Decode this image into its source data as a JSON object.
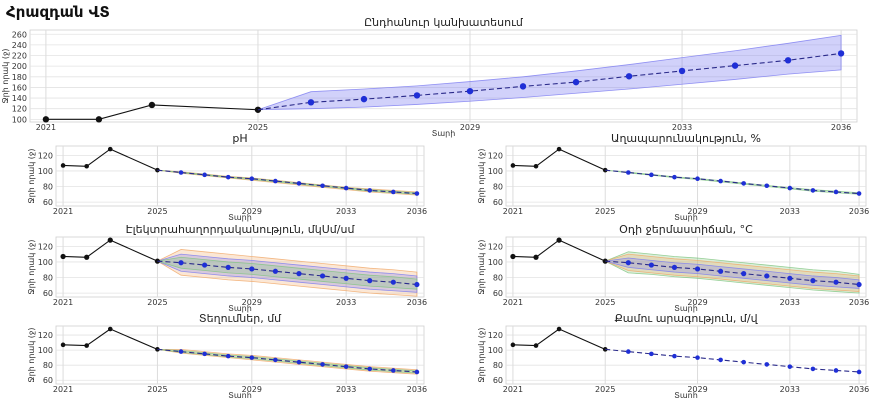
{
  "page": {
    "title": "Հրազդան ՎՏ"
  },
  "chart_data": [
    {
      "id": "main",
      "type": "line",
      "title": "Ընդհանուր կանխատեսում",
      "xlabel": "Տարի",
      "ylabel": "Ջրի որակ (ջ)",
      "xlim": [
        2020.7,
        2036.3
      ],
      "ylim": [
        95,
        268
      ],
      "yticks": [
        100,
        120,
        140,
        160,
        180,
        200,
        220,
        240,
        260
      ],
      "xticks": [
        2021,
        2025,
        2029,
        2033,
        2036
      ],
      "grid": true,
      "colors": {
        "history": "#111111",
        "forecast": "#2233cc",
        "band": "#7b7bf0"
      },
      "history": {
        "x": [
          2021,
          2022,
          2023,
          2025
        ],
        "y": [
          100,
          100,
          127,
          118
        ]
      },
      "forecast": {
        "x": [
          2025,
          2026,
          2027,
          2028,
          2029,
          2030,
          2031,
          2032,
          2033,
          2034,
          2035,
          2036
        ],
        "y": [
          118,
          132,
          138,
          145,
          153,
          162,
          170,
          181,
          191,
          201,
          211,
          224
        ]
      },
      "bands": [
        {
          "color": "#7b7bf0",
          "lower": [
            118,
            120,
            123,
            128,
            134,
            141,
            149,
            157,
            166,
            175,
            185,
            193
          ],
          "upper": [
            118,
            152,
            157,
            163,
            171,
            180,
            191,
            203,
            216,
            229,
            243,
            258
          ]
        }
      ]
    },
    {
      "id": "ph",
      "type": "line",
      "title": "pH",
      "xlabel": "Տարի",
      "ylabel": "Ջրի որակ (ջ)",
      "xlim": [
        2020.7,
        2036.3
      ],
      "ylim": [
        55,
        132
      ],
      "yticks": [
        60,
        80,
        100,
        120
      ],
      "xticks": [
        2021,
        2025,
        2029,
        2033,
        2036
      ],
      "grid": true,
      "history": {
        "x": [
          2021,
          2022,
          2023,
          2025
        ],
        "y": [
          107,
          106,
          128,
          101
        ]
      },
      "forecast": {
        "x": [
          2025,
          2026,
          2027,
          2028,
          2029,
          2030,
          2031,
          2032,
          2033,
          2034,
          2035,
          2036
        ],
        "y": [
          101,
          98,
          95,
          92,
          90,
          87,
          84,
          81,
          78,
          75,
          73,
          71
        ]
      },
      "bands": [
        {
          "color": "#f0a868",
          "lower": [
            101,
            97,
            94,
            91,
            88,
            85,
            82,
            79,
            76,
            73,
            71,
            69
          ],
          "upper": [
            101,
            99,
            96,
            93,
            91,
            88,
            85,
            82,
            79,
            77,
            75,
            73
          ]
        },
        {
          "color": "#7fc47f",
          "lower": [
            101,
            97.5,
            94.5,
            91.5,
            89,
            86,
            83,
            80,
            77,
            74,
            72,
            70
          ],
          "upper": [
            101,
            98.5,
            95.5,
            92.5,
            90.5,
            87.5,
            84.5,
            81.5,
            78.5,
            76,
            74,
            72
          ]
        }
      ]
    },
    {
      "id": "turbidity",
      "type": "line",
      "title": "Աղապարունակություն, %",
      "xlabel": "Տարի",
      "ylabel": "Ջրի որակ (ջ)",
      "xlim": [
        2020.7,
        2036.3
      ],
      "ylim": [
        55,
        132
      ],
      "yticks": [
        60,
        80,
        100,
        120
      ],
      "xticks": [
        2021,
        2025,
        2029,
        2033,
        2036
      ],
      "grid": true,
      "history": {
        "x": [
          2021,
          2022,
          2023,
          2025
        ],
        "y": [
          107,
          106,
          128,
          101
        ]
      },
      "forecast": {
        "x": [
          2025,
          2026,
          2027,
          2028,
          2029,
          2030,
          2031,
          2032,
          2033,
          2034,
          2035,
          2036
        ],
        "y": [
          101,
          98,
          95,
          92,
          90,
          87,
          84,
          81,
          78,
          75,
          73,
          71
        ]
      },
      "bands": [
        {
          "color": "#7fc47f",
          "lower": [
            101,
            97.5,
            94.5,
            91.5,
            89,
            86,
            83,
            80,
            77,
            74,
            72,
            70
          ],
          "upper": [
            101,
            98.5,
            95.5,
            92.5,
            90.5,
            87.5,
            84.5,
            81.5,
            78.5,
            76,
            74,
            72
          ]
        }
      ]
    },
    {
      "id": "conductivity",
      "type": "line",
      "title": "Էլեկտրահաղորդականություն, մկՍմ/սմ",
      "xlabel": "Տարի",
      "ylabel": "Ջրի որակ (ջ)",
      "xlim": [
        2020.7,
        2036.3
      ],
      "ylim": [
        55,
        132
      ],
      "yticks": [
        60,
        80,
        100,
        120
      ],
      "xticks": [
        2021,
        2025,
        2029,
        2033,
        2036
      ],
      "grid": true,
      "history": {
        "x": [
          2021,
          2022,
          2023,
          2025
        ],
        "y": [
          107,
          106,
          128,
          101
        ]
      },
      "forecast": {
        "x": [
          2025,
          2026,
          2027,
          2028,
          2029,
          2030,
          2031,
          2032,
          2033,
          2034,
          2035,
          2036
        ],
        "y": [
          101,
          99,
          96,
          93,
          91,
          88,
          85,
          82,
          79,
          76,
          74,
          71
        ]
      },
      "bands": [
        {
          "color": "#f0a868",
          "lower": [
            101,
            83,
            80,
            77,
            75,
            72,
            69,
            66,
            63,
            60,
            58,
            56
          ],
          "upper": [
            101,
            116,
            113,
            110,
            107,
            104,
            101,
            98,
            95,
            92,
            90,
            87
          ]
        },
        {
          "color": "#7b7bf0",
          "lower": [
            101,
            88,
            85,
            82,
            80,
            77,
            74,
            71,
            68,
            65,
            63,
            61
          ],
          "upper": [
            101,
            110,
            107,
            104,
            102,
            99,
            96,
            93,
            90,
            87,
            85,
            82
          ]
        },
        {
          "color": "#7fc47f",
          "lower": [
            101,
            92,
            89,
            86,
            84,
            81,
            78,
            75,
            72,
            69,
            67,
            65
          ],
          "upper": [
            101,
            106,
            103,
            100,
            98,
            95,
            92,
            89,
            86,
            83,
            81,
            78
          ]
        }
      ]
    },
    {
      "id": "airtemp",
      "type": "line",
      "title": "Օդի ջերմաստիճան, °C",
      "xlabel": "Տարի",
      "ylabel": "Ջրի որակ (ջ)",
      "xlim": [
        2020.7,
        2036.3
      ],
      "ylim": [
        55,
        132
      ],
      "yticks": [
        60,
        80,
        100,
        120
      ],
      "xticks": [
        2021,
        2025,
        2029,
        2033,
        2036
      ],
      "grid": true,
      "history": {
        "x": [
          2021,
          2022,
          2023,
          2025
        ],
        "y": [
          107,
          106,
          128,
          101
        ]
      },
      "forecast": {
        "x": [
          2025,
          2026,
          2027,
          2028,
          2029,
          2030,
          2031,
          2032,
          2033,
          2034,
          2035,
          2036
        ],
        "y": [
          101,
          99,
          96,
          93,
          91,
          88,
          85,
          82,
          79,
          76,
          74,
          71
        ]
      },
      "bands": [
        {
          "color": "#7fc47f",
          "lower": [
            101,
            86,
            84,
            81,
            79,
            76,
            73,
            70,
            67,
            64,
            62,
            60
          ],
          "upper": [
            101,
            113,
            110,
            107,
            105,
            102,
            99,
            96,
            93,
            90,
            88,
            84
          ]
        },
        {
          "color": "#f0a868",
          "lower": [
            101,
            89,
            86,
            83,
            81,
            78,
            75,
            72,
            69,
            66,
            64,
            62
          ],
          "upper": [
            101,
            110,
            107,
            104,
            102,
            99,
            96,
            93,
            90,
            87,
            85,
            82
          ]
        },
        {
          "color": "#7b7bf0",
          "lower": [
            101,
            93,
            90,
            87,
            85,
            82,
            79,
            76,
            73,
            70,
            68,
            66
          ],
          "upper": [
            101,
            105,
            102,
            99,
            97,
            94,
            91,
            88,
            85,
            82,
            80,
            77
          ]
        }
      ]
    },
    {
      "id": "precip",
      "type": "line",
      "title": "Տեղումներ, մմ",
      "xlabel": "Տարի",
      "ylabel": "Ջրի որակ (ջ)",
      "xlim": [
        2020.7,
        2036.3
      ],
      "ylim": [
        55,
        132
      ],
      "yticks": [
        60,
        80,
        100,
        120
      ],
      "xticks": [
        2021,
        2025,
        2029,
        2033,
        2036
      ],
      "grid": true,
      "history": {
        "x": [
          2021,
          2022,
          2023,
          2025
        ],
        "y": [
          107,
          106,
          128,
          101
        ]
      },
      "forecast": {
        "x": [
          2025,
          2026,
          2027,
          2028,
          2029,
          2030,
          2031,
          2032,
          2033,
          2034,
          2035,
          2036
        ],
        "y": [
          101,
          98,
          95,
          92,
          90,
          87,
          84,
          81,
          78,
          75,
          73,
          71
        ]
      },
      "bands": [
        {
          "color": "#f0a868",
          "lower": [
            101,
            96,
            93,
            90,
            87,
            84,
            81,
            78,
            75,
            72,
            70,
            68
          ],
          "upper": [
            101,
            101,
            98,
            95,
            93,
            90,
            87,
            84,
            81,
            78,
            76,
            74
          ]
        },
        {
          "color": "#7fc47f",
          "lower": [
            101,
            97,
            94,
            91,
            88.5,
            85.5,
            82.5,
            79.5,
            76.5,
            73.5,
            71.5,
            69.5
          ],
          "upper": [
            101,
            99.5,
            96.5,
            93.5,
            91.5,
            88.5,
            85.5,
            82.5,
            79.5,
            76.5,
            74.5,
            72.5
          ]
        }
      ]
    },
    {
      "id": "wind",
      "type": "line",
      "title": "Քամու արագություն, մ/վ",
      "xlabel": "Տարի",
      "ylabel": "Ջրի որակ (ջ)",
      "xlim": [
        2020.7,
        2036.3
      ],
      "ylim": [
        55,
        132
      ],
      "yticks": [
        60,
        80,
        100,
        120
      ],
      "xticks": [
        2021,
        2025,
        2029,
        2033,
        2036
      ],
      "grid": true,
      "history": {
        "x": [
          2021,
          2022,
          2023,
          2025
        ],
        "y": [
          107,
          106,
          128,
          101
        ]
      },
      "forecast": {
        "x": [
          2025,
          2026,
          2027,
          2028,
          2029,
          2030,
          2031,
          2032,
          2033,
          2034,
          2035,
          2036
        ],
        "y": [
          101,
          98,
          95,
          92,
          90,
          87,
          84,
          81,
          78,
          75,
          73,
          71
        ]
      },
      "bands": []
    }
  ]
}
